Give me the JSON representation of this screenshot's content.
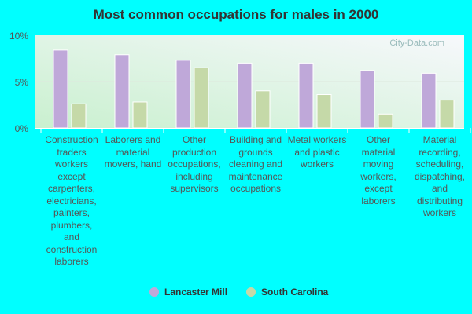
{
  "chart_data": {
    "type": "bar",
    "title": "Most common occupations for males in 2000",
    "categories": [
      "Construction traders workers except carpenters, electricians, painters, plumbers, and construction laborers",
      "Laborers and material movers, hand",
      "Other production occupations, including supervisors",
      "Building and grounds cleaning and maintenance occupations",
      "Metal workers and plastic workers",
      "Other material moving workers, except laborers",
      "Material recording, scheduling, dispatching, and distributing workers"
    ],
    "series": [
      {
        "name": "Lancaster Mill",
        "color": "#bfa8d9",
        "values": [
          8.4,
          7.9,
          7.3,
          7.0,
          7.0,
          6.2,
          5.9
        ]
      },
      {
        "name": "South Carolina",
        "color": "#c5d9a8",
        "values": [
          2.6,
          2.8,
          6.5,
          4.0,
          3.6,
          1.5,
          3.0
        ]
      }
    ],
    "yticks": [
      "0%",
      "5%",
      "10%"
    ],
    "ylim": [
      0,
      10
    ],
    "grid": true,
    "legend": "bottom",
    "watermark": "City-Data.com"
  }
}
